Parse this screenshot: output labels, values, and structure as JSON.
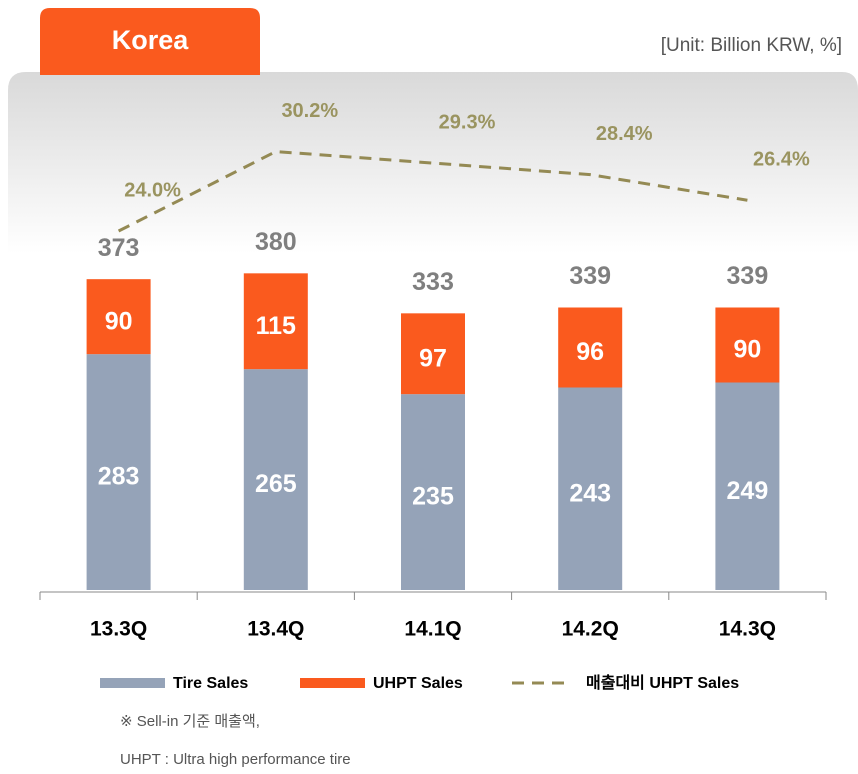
{
  "tab": "Korea",
  "unit": "[Unit: Billion KRW, %]",
  "notes": [
    "※ Sell-in 기준 매출액,",
    "UHPT : Ultra high performance tire"
  ],
  "chart_data": {
    "type": "bar",
    "stacked": true,
    "categories": [
      "13.3Q",
      "13.4Q",
      "14.1Q",
      "14.2Q",
      "14.3Q"
    ],
    "series": [
      {
        "name": "Tire Sales",
        "color": "#95a3b8",
        "values": [
          283,
          265,
          235,
          243,
          249
        ]
      },
      {
        "name": "UHPT Sales",
        "color": "#fa5a1e",
        "values": [
          90,
          115,
          97,
          96,
          90
        ]
      },
      {
        "name": "매출대비 UHPT Sales",
        "type": "line",
        "axis": "y2",
        "color": "#948a54",
        "dashed": true,
        "values": [
          24.0,
          30.2,
          29.3,
          28.4,
          26.4
        ],
        "value_labels": [
          "24.0%",
          "30.2%",
          "29.3%",
          "28.4%",
          "26.4%"
        ]
      }
    ],
    "totals": [
      373,
      380,
      333,
      339,
      339
    ],
    "ylim": [
      0,
      600
    ],
    "y2lim": [
      -4,
      35
    ]
  }
}
